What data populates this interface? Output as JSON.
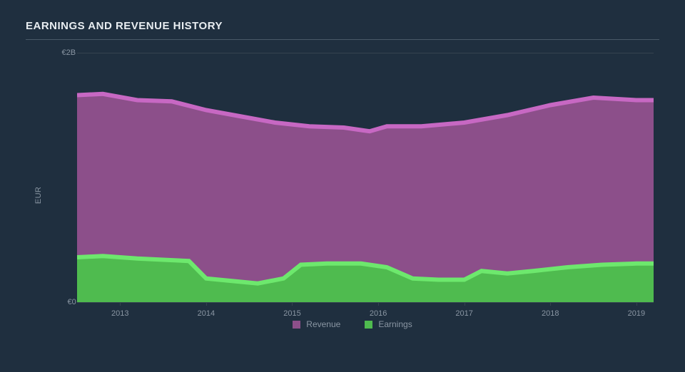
{
  "chart": {
    "type": "area",
    "title": "EARNINGS AND REVENUE HISTORY",
    "background_color": "#1f2f3f",
    "grid_color": "#35434f",
    "text_color": "#8a96a3",
    "title_color": "#e8edf1",
    "title_fontsize": 15,
    "label_fontsize": 11,
    "y_axis": {
      "label": "EUR",
      "min": 0,
      "max": 2.0,
      "ticks": [
        {
          "v": 0,
          "label": "€0"
        },
        {
          "v": 2.0,
          "label": "€2B"
        }
      ]
    },
    "x_axis": {
      "min": 2012.5,
      "max": 2019.2,
      "ticks": [
        2013,
        2014,
        2015,
        2016,
        2017,
        2018,
        2019
      ]
    },
    "series": [
      {
        "name": "Revenue",
        "fill_color": "#8c4f8a",
        "stroke_color": "#c768c3",
        "stroke_width": 2,
        "points": [
          [
            2012.5,
            1.66
          ],
          [
            2012.8,
            1.67
          ],
          [
            2013.2,
            1.62
          ],
          [
            2013.6,
            1.61
          ],
          [
            2014.0,
            1.54
          ],
          [
            2014.4,
            1.49
          ],
          [
            2014.8,
            1.44
          ],
          [
            2015.2,
            1.41
          ],
          [
            2015.6,
            1.4
          ],
          [
            2015.9,
            1.37
          ],
          [
            2016.1,
            1.41
          ],
          [
            2016.5,
            1.41
          ],
          [
            2017.0,
            1.44
          ],
          [
            2017.5,
            1.5
          ],
          [
            2018.0,
            1.58
          ],
          [
            2018.5,
            1.64
          ],
          [
            2019.0,
            1.62
          ],
          [
            2019.2,
            1.62
          ]
        ]
      },
      {
        "name": "Earnings",
        "fill_color": "#4fbb4f",
        "stroke_color": "#6de86d",
        "stroke_width": 2,
        "points": [
          [
            2012.5,
            0.36
          ],
          [
            2012.8,
            0.37
          ],
          [
            2013.2,
            0.35
          ],
          [
            2013.5,
            0.34
          ],
          [
            2013.8,
            0.33
          ],
          [
            2014.0,
            0.19
          ],
          [
            2014.3,
            0.17
          ],
          [
            2014.6,
            0.15
          ],
          [
            2014.9,
            0.19
          ],
          [
            2015.1,
            0.3
          ],
          [
            2015.4,
            0.31
          ],
          [
            2015.8,
            0.31
          ],
          [
            2016.1,
            0.28
          ],
          [
            2016.4,
            0.19
          ],
          [
            2016.7,
            0.18
          ],
          [
            2017.0,
            0.18
          ],
          [
            2017.2,
            0.25
          ],
          [
            2017.5,
            0.23
          ],
          [
            2017.8,
            0.25
          ],
          [
            2018.2,
            0.28
          ],
          [
            2018.6,
            0.3
          ],
          [
            2019.0,
            0.31
          ],
          [
            2019.2,
            0.31
          ]
        ]
      }
    ],
    "legend": {
      "items": [
        {
          "label": "Revenue",
          "color": "#8c4f8a"
        },
        {
          "label": "Earnings",
          "color": "#4fbb4f"
        }
      ]
    }
  }
}
